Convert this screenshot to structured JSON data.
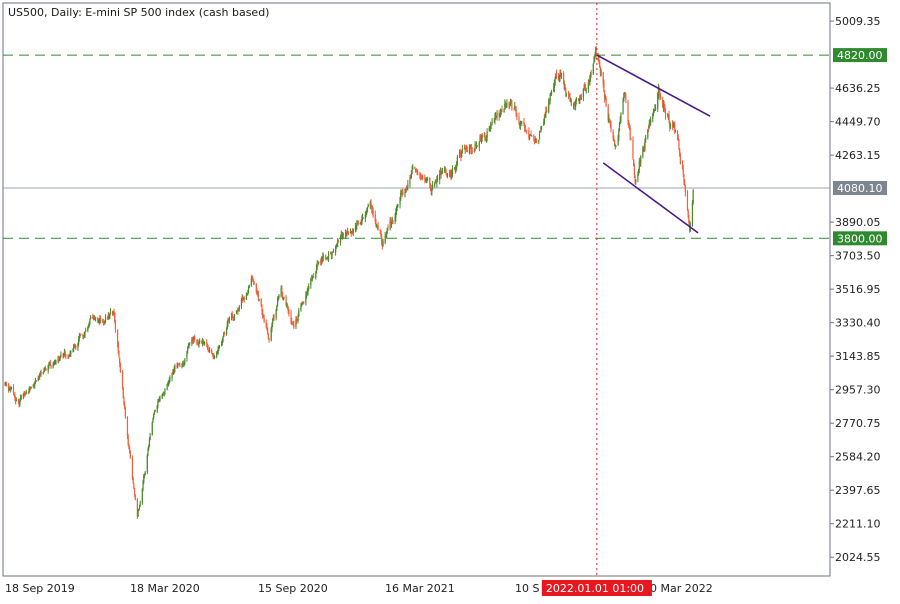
{
  "header": {
    "symbol": "US500",
    "timeframe": "Daily:",
    "description": "E-mini SP 500 index (cash based)"
  },
  "colors": {
    "frame": "#6e7580",
    "grid_line": "#6e7580",
    "up_candle": "#4c8a2a",
    "down_candle": "#f0603c",
    "level_line": "#2f8a2f",
    "level_label_bg": "#2f8a2f",
    "price_label_bg": "#7d8590",
    "channel": "#4b1a8a",
    "crosshair": "#e0202a",
    "crosshair_label_bg": "#e8161e"
  },
  "chart_data": {
    "type": "candlestick",
    "title": "US500, Daily:  E-mini SP 500 index (cash based)",
    "ylim": [
      1920,
      5110
    ],
    "y_ticks": [
      5009.35,
      4636.25,
      4449.7,
      4263.15,
      3890.05,
      3703.5,
      3516.95,
      3330.4,
      3143.85,
      2957.3,
      2770.75,
      2584.2,
      2397.65,
      2211.1,
      2024.55
    ],
    "x_labels": [
      "18 Sep 2019",
      "18 Mar 2020",
      "15 Sep 2020",
      "16 Mar 2021",
      "10 S",
      "0 Mar 2022"
    ],
    "horizontal_levels": [
      {
        "value": 4820.0,
        "label": "4820.00"
      },
      {
        "value": 3800.0,
        "label": "3800.00"
      }
    ],
    "last_price": {
      "value": 4080.1,
      "label": "4080.10"
    },
    "vertical_marker": {
      "label": "2022.01.01 01:00"
    },
    "price_path": [
      {
        "date": "2019-09-18",
        "close": 3000
      },
      {
        "date": "2019-10-08",
        "close": 2890
      },
      {
        "date": "2019-11-15",
        "close": 3060
      },
      {
        "date": "2019-12-20",
        "close": 3190
      },
      {
        "date": "2020-01-17",
        "close": 3330
      },
      {
        "date": "2020-02-19",
        "close": 3380
      },
      {
        "date": "2020-03-01",
        "close": 3000
      },
      {
        "date": "2020-03-23",
        "close": 2230
      },
      {
        "date": "2020-04-17",
        "close": 2870
      },
      {
        "date": "2020-06-08",
        "close": 3220
      },
      {
        "date": "2020-07-10",
        "close": 3170
      },
      {
        "date": "2020-09-02",
        "close": 3580
      },
      {
        "date": "2020-09-25",
        "close": 3240
      },
      {
        "date": "2020-10-12",
        "close": 3540
      },
      {
        "date": "2020-10-30",
        "close": 3270
      },
      {
        "date": "2020-12-01",
        "close": 3660
      },
      {
        "date": "2021-01-08",
        "close": 3820
      },
      {
        "date": "2021-02-15",
        "close": 3930
      },
      {
        "date": "2021-03-04",
        "close": 3770
      },
      {
        "date": "2021-04-16",
        "close": 4180
      },
      {
        "date": "2021-05-12",
        "close": 4090
      },
      {
        "date": "2021-06-20",
        "close": 4240
      },
      {
        "date": "2021-08-15",
        "close": 4470
      },
      {
        "date": "2021-09-02",
        "close": 4540
      },
      {
        "date": "2021-10-04",
        "close": 4300
      },
      {
        "date": "2021-11-05",
        "close": 4700
      },
      {
        "date": "2021-12-01",
        "close": 4520
      },
      {
        "date": "2022-01-01",
        "close": 4810
      },
      {
        "date": "2022-01-27",
        "close": 4290
      },
      {
        "date": "2022-02-09",
        "close": 4570
      },
      {
        "date": "2022-02-24",
        "close": 4150
      },
      {
        "date": "2022-03-29",
        "close": 4630
      },
      {
        "date": "2022-04-20",
        "close": 4380
      },
      {
        "date": "2022-05-03",
        "close": 4170
      },
      {
        "date": "2022-05-12",
        "close": 3900
      },
      {
        "date": "2022-05-17",
        "close": 4080
      }
    ],
    "channel_lines": [
      {
        "from": {
          "date": "2022-01-01",
          "value": 4820
        },
        "to": {
          "date": "2022-06-10",
          "value": 4480
        }
      },
      {
        "from": {
          "date": "2022-01-10",
          "value": 4220
        },
        "to": {
          "date": "2022-05-24",
          "value": 3830
        }
      }
    ]
  }
}
